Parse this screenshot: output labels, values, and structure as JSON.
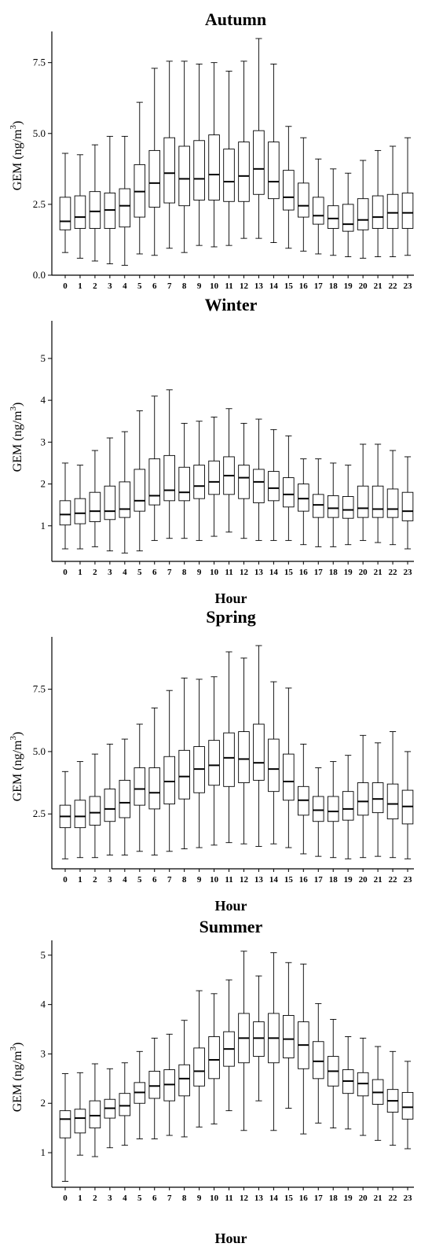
{
  "chart_data": [
    {
      "type": "box",
      "title": "Autumn",
      "xlabel": "",
      "ylabel": "GEM (ng/m",
      "ylabel_sup": "3",
      "ylabel_end": ")",
      "ylim": [
        0,
        8.6
      ],
      "yticks": [
        0.0,
        2.5,
        5.0,
        7.5
      ],
      "ytick_labels": [
        "0.0",
        "2.5",
        "5.0",
        "7.5"
      ],
      "categories": [
        "0",
        "1",
        "2",
        "3",
        "4",
        "5",
        "6",
        "7",
        "8",
        "9",
        "10",
        "11",
        "12",
        "13",
        "14",
        "15",
        "16",
        "17",
        "18",
        "19",
        "20",
        "21",
        "22",
        "23"
      ],
      "boxes": [
        {
          "min": 0.8,
          "q1": 1.6,
          "median": 1.9,
          "q3": 2.75,
          "max": 4.3
        },
        {
          "min": 0.6,
          "q1": 1.65,
          "median": 2.05,
          "q3": 2.8,
          "max": 4.25
        },
        {
          "min": 0.5,
          "q1": 1.65,
          "median": 2.25,
          "q3": 2.95,
          "max": 4.6
        },
        {
          "min": 0.4,
          "q1": 1.65,
          "median": 2.3,
          "q3": 2.9,
          "max": 4.9
        },
        {
          "min": 0.35,
          "q1": 1.7,
          "median": 2.45,
          "q3": 3.05,
          "max": 4.9
        },
        {
          "min": 0.75,
          "q1": 2.05,
          "median": 2.95,
          "q3": 3.9,
          "max": 6.1
        },
        {
          "min": 0.7,
          "q1": 2.4,
          "median": 3.25,
          "q3": 4.4,
          "max": 7.3
        },
        {
          "min": 0.95,
          "q1": 2.55,
          "median": 3.6,
          "q3": 4.85,
          "max": 7.55
        },
        {
          "min": 0.8,
          "q1": 2.45,
          "median": 3.4,
          "q3": 4.55,
          "max": 7.55
        },
        {
          "min": 1.05,
          "q1": 2.65,
          "median": 3.4,
          "q3": 4.75,
          "max": 7.45
        },
        {
          "min": 1.0,
          "q1": 2.65,
          "median": 3.55,
          "q3": 4.95,
          "max": 7.5
        },
        {
          "min": 1.05,
          "q1": 2.6,
          "median": 3.3,
          "q3": 4.45,
          "max": 7.2
        },
        {
          "min": 1.3,
          "q1": 2.6,
          "median": 3.5,
          "q3": 4.7,
          "max": 7.55
        },
        {
          "min": 1.3,
          "q1": 2.85,
          "median": 3.75,
          "q3": 5.1,
          "max": 8.35
        },
        {
          "min": 1.15,
          "q1": 2.7,
          "median": 3.3,
          "q3": 4.7,
          "max": 7.45
        },
        {
          "min": 0.95,
          "q1": 2.3,
          "median": 2.75,
          "q3": 3.7,
          "max": 5.25
        },
        {
          "min": 0.85,
          "q1": 2.05,
          "median": 2.45,
          "q3": 3.25,
          "max": 4.85
        },
        {
          "min": 0.75,
          "q1": 1.8,
          "median": 2.1,
          "q3": 2.75,
          "max": 4.1
        },
        {
          "min": 0.7,
          "q1": 1.65,
          "median": 2.0,
          "q3": 2.45,
          "max": 3.75
        },
        {
          "min": 0.65,
          "q1": 1.55,
          "median": 1.8,
          "q3": 2.5,
          "max": 3.6
        },
        {
          "min": 0.6,
          "q1": 1.6,
          "median": 1.95,
          "q3": 2.7,
          "max": 4.05
        },
        {
          "min": 0.65,
          "q1": 1.65,
          "median": 2.05,
          "q3": 2.8,
          "max": 4.4
        },
        {
          "min": 0.65,
          "q1": 1.65,
          "median": 2.2,
          "q3": 2.85,
          "max": 4.55
        },
        {
          "min": 0.7,
          "q1": 1.65,
          "median": 2.2,
          "q3": 2.9,
          "max": 4.85
        }
      ]
    },
    {
      "type": "box",
      "title": "Winter",
      "xlabel": "Hour",
      "ylabel": "GEM (ng/m",
      "ylabel_sup": "3",
      "ylabel_end": ")",
      "ylim": [
        0.15,
        5.9
      ],
      "yticks": [
        1,
        2,
        3,
        4,
        5
      ],
      "ytick_labels": [
        "1",
        "2",
        "3",
        "4",
        "5"
      ],
      "categories": [
        "0",
        "1",
        "2",
        "3",
        "4",
        "5",
        "6",
        "7",
        "8",
        "9",
        "10",
        "11",
        "12",
        "13",
        "14",
        "15",
        "16",
        "17",
        "18",
        "19",
        "20",
        "21",
        "22",
        "23"
      ],
      "boxes": [
        {
          "min": 0.45,
          "q1": 1.02,
          "median": 1.27,
          "q3": 1.6,
          "max": 2.5
        },
        {
          "min": 0.45,
          "q1": 1.05,
          "median": 1.3,
          "q3": 1.65,
          "max": 2.45
        },
        {
          "min": 0.5,
          "q1": 1.1,
          "median": 1.35,
          "q3": 1.8,
          "max": 2.8
        },
        {
          "min": 0.4,
          "q1": 1.15,
          "median": 1.35,
          "q3": 1.95,
          "max": 3.1
        },
        {
          "min": 0.35,
          "q1": 1.2,
          "median": 1.4,
          "q3": 2.05,
          "max": 3.25
        },
        {
          "min": 0.4,
          "q1": 1.35,
          "median": 1.6,
          "q3": 2.35,
          "max": 3.75
        },
        {
          "min": 0.65,
          "q1": 1.5,
          "median": 1.72,
          "q3": 2.6,
          "max": 4.1
        },
        {
          "min": 0.7,
          "q1": 1.6,
          "median": 1.85,
          "q3": 2.68,
          "max": 4.25
        },
        {
          "min": 0.7,
          "q1": 1.6,
          "median": 1.8,
          "q3": 2.4,
          "max": 3.45
        },
        {
          "min": 0.65,
          "q1": 1.65,
          "median": 1.95,
          "q3": 2.45,
          "max": 3.5
        },
        {
          "min": 0.75,
          "q1": 1.75,
          "median": 2.05,
          "q3": 2.55,
          "max": 3.6
        },
        {
          "min": 0.85,
          "q1": 1.75,
          "median": 2.2,
          "q3": 2.65,
          "max": 3.8
        },
        {
          "min": 0.7,
          "q1": 1.65,
          "median": 2.15,
          "q3": 2.45,
          "max": 3.45
        },
        {
          "min": 0.65,
          "q1": 1.55,
          "median": 2.05,
          "q3": 2.35,
          "max": 3.55
        },
        {
          "min": 0.65,
          "q1": 1.6,
          "median": 1.9,
          "q3": 2.3,
          "max": 3.3
        },
        {
          "min": 0.65,
          "q1": 1.45,
          "median": 1.75,
          "q3": 2.15,
          "max": 3.15
        },
        {
          "min": 0.55,
          "q1": 1.35,
          "median": 1.65,
          "q3": 2.0,
          "max": 2.6
        },
        {
          "min": 0.5,
          "q1": 1.2,
          "median": 1.5,
          "q3": 1.75,
          "max": 2.6
        },
        {
          "min": 0.5,
          "q1": 1.2,
          "median": 1.42,
          "q3": 1.72,
          "max": 2.5
        },
        {
          "min": 0.55,
          "q1": 1.18,
          "median": 1.38,
          "q3": 1.7,
          "max": 2.45
        },
        {
          "min": 0.65,
          "q1": 1.2,
          "median": 1.42,
          "q3": 1.95,
          "max": 2.95
        },
        {
          "min": 0.6,
          "q1": 1.2,
          "median": 1.4,
          "q3": 1.95,
          "max": 2.95
        },
        {
          "min": 0.55,
          "q1": 1.2,
          "median": 1.4,
          "q3": 1.88,
          "max": 2.8
        },
        {
          "min": 0.45,
          "q1": 1.12,
          "median": 1.35,
          "q3": 1.8,
          "max": 2.65
        }
      ]
    },
    {
      "type": "box",
      "title": "Spring",
      "xlabel": "Hour",
      "ylabel": "GEM (ng/m",
      "ylabel_sup": "3",
      "ylabel_end": ")",
      "ylim": [
        0.3,
        9.6
      ],
      "yticks": [
        2.5,
        5.0,
        7.5
      ],
      "ytick_labels": [
        "2.5",
        "5.0",
        "7.5"
      ],
      "categories": [
        "0",
        "1",
        "2",
        "3",
        "4",
        "5",
        "6",
        "7",
        "8",
        "9",
        "10",
        "11",
        "12",
        "13",
        "14",
        "15",
        "16",
        "17",
        "18",
        "19",
        "20",
        "21",
        "22",
        "23"
      ],
      "boxes": [
        {
          "min": 0.7,
          "q1": 1.95,
          "median": 2.4,
          "q3": 2.85,
          "max": 4.2
        },
        {
          "min": 0.75,
          "q1": 1.95,
          "median": 2.4,
          "q3": 3.05,
          "max": 4.6
        },
        {
          "min": 0.75,
          "q1": 2.05,
          "median": 2.55,
          "q3": 3.2,
          "max": 4.9
        },
        {
          "min": 0.85,
          "q1": 2.2,
          "median": 2.7,
          "q3": 3.5,
          "max": 5.3
        },
        {
          "min": 0.85,
          "q1": 2.35,
          "median": 2.95,
          "q3": 3.85,
          "max": 5.5
        },
        {
          "min": 1.0,
          "q1": 2.85,
          "median": 3.5,
          "q3": 4.35,
          "max": 6.1
        },
        {
          "min": 0.85,
          "q1": 2.7,
          "median": 3.35,
          "q3": 4.35,
          "max": 6.75
        },
        {
          "min": 1.0,
          "q1": 2.9,
          "median": 3.8,
          "q3": 4.8,
          "max": 7.45
        },
        {
          "min": 1.1,
          "q1": 3.1,
          "median": 4.0,
          "q3": 5.05,
          "max": 7.95
        },
        {
          "min": 1.15,
          "q1": 3.35,
          "median": 4.3,
          "q3": 5.2,
          "max": 7.9
        },
        {
          "min": 1.25,
          "q1": 3.65,
          "median": 4.45,
          "q3": 5.45,
          "max": 8.0
        },
        {
          "min": 1.35,
          "q1": 3.6,
          "median": 4.75,
          "q3": 5.75,
          "max": 9.0
        },
        {
          "min": 1.3,
          "q1": 3.75,
          "median": 4.7,
          "q3": 5.8,
          "max": 8.75
        },
        {
          "min": 1.2,
          "q1": 3.85,
          "median": 4.55,
          "q3": 6.1,
          "max": 9.25
        },
        {
          "min": 1.3,
          "q1": 3.4,
          "median": 4.3,
          "q3": 5.5,
          "max": 7.8
        },
        {
          "min": 1.15,
          "q1": 3.05,
          "median": 3.8,
          "q3": 4.9,
          "max": 7.55
        },
        {
          "min": 0.9,
          "q1": 2.45,
          "median": 3.05,
          "q3": 3.6,
          "max": 5.3
        },
        {
          "min": 0.8,
          "q1": 2.2,
          "median": 2.65,
          "q3": 3.2,
          "max": 4.35
        },
        {
          "min": 0.75,
          "q1": 2.2,
          "median": 2.6,
          "q3": 3.2,
          "max": 4.6
        },
        {
          "min": 0.7,
          "q1": 2.25,
          "median": 2.7,
          "q3": 3.4,
          "max": 4.85
        },
        {
          "min": 0.75,
          "q1": 2.45,
          "median": 3.0,
          "q3": 3.75,
          "max": 5.65
        },
        {
          "min": 0.8,
          "q1": 2.55,
          "median": 3.1,
          "q3": 3.75,
          "max": 5.35
        },
        {
          "min": 0.75,
          "q1": 2.3,
          "median": 2.9,
          "q3": 3.7,
          "max": 5.8
        },
        {
          "min": 0.7,
          "q1": 2.1,
          "median": 2.8,
          "q3": 3.45,
          "max": 5.0
        }
      ]
    },
    {
      "type": "box",
      "title": "Summer",
      "xlabel": "Hour",
      "ylabel": "GEM (ng/m",
      "ylabel_sup": "3",
      "ylabel_end": ")",
      "ylim": [
        0.3,
        5.3
      ],
      "yticks": [
        1,
        2,
        3,
        4,
        5
      ],
      "ytick_labels": [
        "1",
        "2",
        "3",
        "4",
        "5"
      ],
      "categories": [
        "0",
        "1",
        "2",
        "3",
        "4",
        "5",
        "6",
        "7",
        "8",
        "9",
        "10",
        "11",
        "12",
        "13",
        "14",
        "15",
        "16",
        "17",
        "18",
        "19",
        "20",
        "21",
        "22",
        "23"
      ],
      "boxes": [
        {
          "min": 0.42,
          "q1": 1.3,
          "median": 1.68,
          "q3": 1.85,
          "max": 2.6
        },
        {
          "min": 0.95,
          "q1": 1.4,
          "median": 1.7,
          "q3": 1.88,
          "max": 2.62
        },
        {
          "min": 0.92,
          "q1": 1.5,
          "median": 1.75,
          "q3": 2.05,
          "max": 2.8
        },
        {
          "min": 1.1,
          "q1": 1.7,
          "median": 1.9,
          "q3": 2.08,
          "max": 2.7
        },
        {
          "min": 1.15,
          "q1": 1.75,
          "median": 1.95,
          "q3": 2.2,
          "max": 2.82
        },
        {
          "min": 1.28,
          "q1": 2.0,
          "median": 2.22,
          "q3": 2.42,
          "max": 3.05
        },
        {
          "min": 1.28,
          "q1": 2.1,
          "median": 2.35,
          "q3": 2.65,
          "max": 3.32
        },
        {
          "min": 1.35,
          "q1": 2.05,
          "median": 2.38,
          "q3": 2.68,
          "max": 3.4
        },
        {
          "min": 1.32,
          "q1": 2.15,
          "median": 2.5,
          "q3": 2.78,
          "max": 3.68
        },
        {
          "min": 1.52,
          "q1": 2.35,
          "median": 2.65,
          "q3": 3.12,
          "max": 4.28
        },
        {
          "min": 1.58,
          "q1": 2.5,
          "median": 2.88,
          "q3": 3.35,
          "max": 4.22
        },
        {
          "min": 1.85,
          "q1": 2.75,
          "median": 3.1,
          "q3": 3.45,
          "max": 4.5
        },
        {
          "min": 1.45,
          "q1": 2.82,
          "median": 3.32,
          "q3": 3.82,
          "max": 5.08
        },
        {
          "min": 2.05,
          "q1": 2.95,
          "median": 3.32,
          "q3": 3.65,
          "max": 4.58
        },
        {
          "min": 1.45,
          "q1": 2.82,
          "median": 3.32,
          "q3": 3.82,
          "max": 5.05
        },
        {
          "min": 1.9,
          "q1": 2.92,
          "median": 3.3,
          "q3": 3.78,
          "max": 4.85
        },
        {
          "min": 1.38,
          "q1": 2.7,
          "median": 3.18,
          "q3": 3.65,
          "max": 4.82
        },
        {
          "min": 1.6,
          "q1": 2.5,
          "median": 2.85,
          "q3": 3.25,
          "max": 4.02
        },
        {
          "min": 1.5,
          "q1": 2.35,
          "median": 2.65,
          "q3": 2.95,
          "max": 3.7
        },
        {
          "min": 1.48,
          "q1": 2.2,
          "median": 2.45,
          "q3": 2.68,
          "max": 3.35
        },
        {
          "min": 1.35,
          "q1": 2.15,
          "median": 2.4,
          "q3": 2.62,
          "max": 3.32
        },
        {
          "min": 1.25,
          "q1": 1.98,
          "median": 2.22,
          "q3": 2.48,
          "max": 3.15
        },
        {
          "min": 1.15,
          "q1": 1.82,
          "median": 2.05,
          "q3": 2.28,
          "max": 3.05
        },
        {
          "min": 1.08,
          "q1": 1.68,
          "median": 1.92,
          "q3": 2.22,
          "max": 2.85
        }
      ]
    }
  ]
}
